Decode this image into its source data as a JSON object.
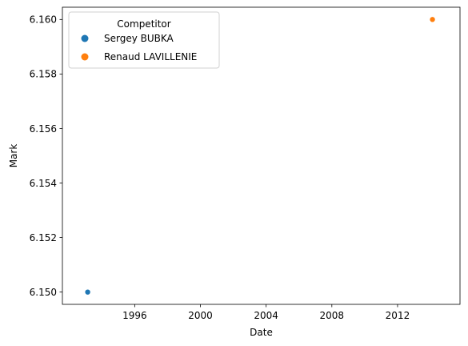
{
  "chart_data": {
    "type": "scatter",
    "xlabel": "Date",
    "ylabel": "Mark",
    "xlim": [
      1991.6,
      2015.8
    ],
    "ylim": [
      6.14955,
      6.16045
    ],
    "xticks": [
      1996,
      2000,
      2004,
      2008,
      2012
    ],
    "xtick_labels": [
      "1996",
      "2000",
      "2004",
      "2008",
      "2012"
    ],
    "yticks": [
      6.15,
      6.152,
      6.154,
      6.156,
      6.158,
      6.16
    ],
    "ytick_labels": [
      "6.150",
      "6.152",
      "6.154",
      "6.156",
      "6.158",
      "6.160"
    ],
    "legend": {
      "title": "Competitor",
      "placement": "top-left"
    },
    "series": [
      {
        "name": "Sergey BUBKA",
        "color": "#1f77b4",
        "points": [
          {
            "x": "1993-02-21",
            "y": 6.15
          }
        ]
      },
      {
        "name": "Renaud LAVILLENIE",
        "color": "#ff7f0e",
        "points": [
          {
            "x": "2014-02-15",
            "y": 6.16
          }
        ]
      }
    ],
    "grid": false
  }
}
